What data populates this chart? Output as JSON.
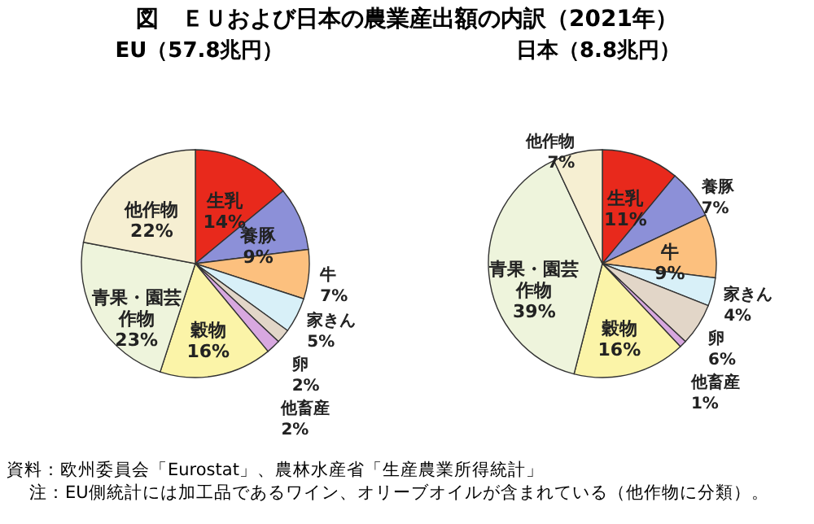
{
  "chart_data": [
    {
      "type": "pie",
      "title": "図　ＥＵおよび日本の農業産出額の内訳（2021年）",
      "subtitle": "EU（57.8兆円）",
      "categories": [
        "生乳",
        "養豚",
        "牛",
        "家きん",
        "卵",
        "他畜産",
        "穀物",
        "青果・園芸作物",
        "他作物"
      ],
      "values": [
        14,
        9,
        7,
        5,
        2,
        2,
        16,
        23,
        22
      ],
      "value_labels": [
        "14%",
        "9%",
        "7%",
        "5%",
        "2%",
        "2%",
        "16%",
        "23%",
        "22%"
      ],
      "colors": [
        "#e8291c",
        "#8c90d8",
        "#fcc07e",
        "#d8f0f8",
        "#e2d6c8",
        "#d8a8e0",
        "#fbf4a8",
        "#eef4dc",
        "#f6efd2"
      ],
      "annotations": [
        "資料：欧州委員会「Eurostat」、農林水産省「生産農業所得統計」",
        "注：EU側統計には加工品であるワイン、オリーブオイルが含まれている（他作物に分類）。"
      ]
    },
    {
      "type": "pie",
      "subtitle": "日本（8.8兆円）",
      "categories": [
        "生乳",
        "養豚",
        "牛",
        "家きん",
        "卵",
        "他畜産",
        "穀物",
        "青果・園芸作物",
        "他作物"
      ],
      "values": [
        11,
        7,
        9,
        4,
        6,
        1,
        16,
        39,
        7
      ],
      "value_labels": [
        "11%",
        "7%",
        "9%",
        "4%",
        "6%",
        "1%",
        "16%",
        "39%",
        "7%"
      ],
      "colors": [
        "#e8291c",
        "#8c90d8",
        "#fcc07e",
        "#d8f0f8",
        "#e2d6c8",
        "#d8a8e0",
        "#fbf4a8",
        "#eef4dc",
        "#f6efd2"
      ]
    }
  ]
}
